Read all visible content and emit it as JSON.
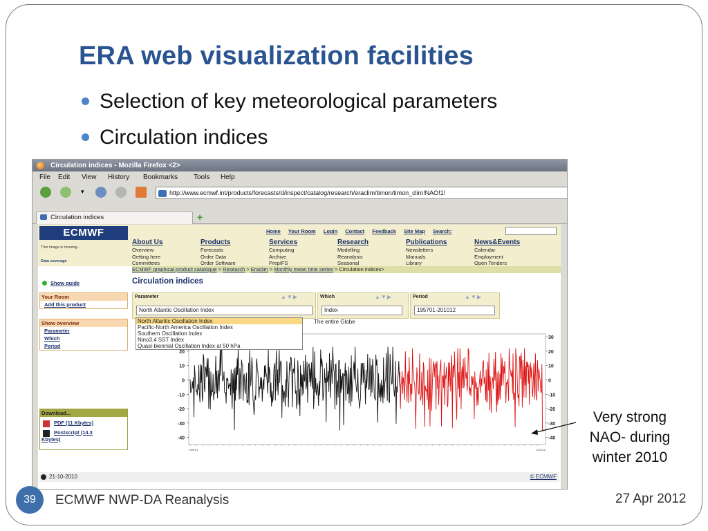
{
  "slide": {
    "title": "ERA web visualization facilities",
    "bullets": [
      "Selection of key meteorological parameters",
      "Circulation indices"
    ],
    "annotation": [
      "Very strong",
      "NAO- during",
      "winter 2010"
    ],
    "footer_left": "ECMWF NWP-DA Reanalysis",
    "footer_right": "27 Apr 2012",
    "page_number": "39"
  },
  "browser": {
    "window_title": "Circulation indices - Mozilla Firefox <2>",
    "menu": [
      "File",
      "Edit",
      "View",
      "History",
      "Bookmarks",
      "Tools",
      "Help"
    ],
    "url": "http://www.ecmwf.int/products/forecasts/d/inspect/catalog/research/eraclim/timon/timon_clim!NAO!1!",
    "tab_label": "Circulation indices"
  },
  "site": {
    "logo": "ECMWF",
    "image_missing": "This image is missing...",
    "data_coverage": "Data coverage",
    "top_links": [
      "Home",
      "Your Room",
      "Login",
      "Contact",
      "Feedback",
      "Site Map",
      "Search:"
    ],
    "nav": [
      {
        "title": "About Us",
        "items": [
          "Overview",
          "Getting here",
          "Committees"
        ]
      },
      {
        "title": "Products",
        "items": [
          "Forecasts",
          "Order Data",
          "Order Software"
        ]
      },
      {
        "title": "Services",
        "items": [
          "Computing",
          "Archive",
          "PrepIFS"
        ]
      },
      {
        "title": "Research",
        "items": [
          "Modelling",
          "Reanalysis",
          "Seasonal"
        ]
      },
      {
        "title": "Publications",
        "items": [
          "Newsletters",
          "Manuals",
          "Library"
        ]
      },
      {
        "title": "News&Events",
        "items": [
          "Calendar",
          "Employment",
          "Open Tenders"
        ]
      }
    ],
    "breadcrumb": {
      "catalogue": "ECMWF graphical product catalogue",
      "research": "Research",
      "eraclim": "Eraclim",
      "series": "Monthly mean time series",
      "current": "Circulation indices>"
    },
    "left": {
      "show_guide": "Show guide",
      "your_room": "Your Room",
      "add_product": "Add this product",
      "show_overview": "Show overview",
      "overview_items": [
        "Parameter",
        "Which",
        "Period"
      ],
      "download": "Download...",
      "pdf": "PDF (11 Kbytes)",
      "postscript": "Postscript (14.3",
      "postscript2": "Kbytes)"
    },
    "page_title": "Circulation indices",
    "selectors": {
      "parameter_label": "Parameter",
      "parameter_value": "North Atlantic Oscillation Index",
      "which_label": "Which",
      "which_value": "Index",
      "period_label": "Period",
      "period_value": "195701-201012"
    },
    "dropdown_options": [
      "North Atlantic Oscillation Index",
      "Pacific-North America Oscillation Index",
      "Southern Oscillation Index",
      "Nino3.4 SST Index",
      "Quasi-biennial Oscillation Index at 50 hPa"
    ],
    "globe_text": "The entire Globe",
    "footer_date": "21-10-2010",
    "footer_copy": "© ECMWF"
  },
  "chart_data": {
    "type": "line",
    "title": "",
    "xlabel": "",
    "ylabel": "",
    "ylim": [
      -45,
      32
    ],
    "y_ticks_left": [
      20,
      10,
      0,
      -10,
      -20,
      -30,
      -40
    ],
    "y_ticks_right": [
      30,
      20,
      10,
      0,
      -10,
      -20,
      -30,
      -40
    ],
    "x_range": [
      "195701",
      "201012"
    ],
    "series": [
      {
        "color": "#111111",
        "x_start_year": 1957,
        "x_end_year": 1989,
        "approx_range": [
          -38,
          23
        ]
      },
      {
        "color": "#dd1111",
        "x_start_year": 1989,
        "x_end_year": 2010,
        "approx_range": [
          -34,
          22
        ]
      }
    ],
    "notable_point": {
      "year": 2010,
      "value": -35
    },
    "grid": false
  }
}
